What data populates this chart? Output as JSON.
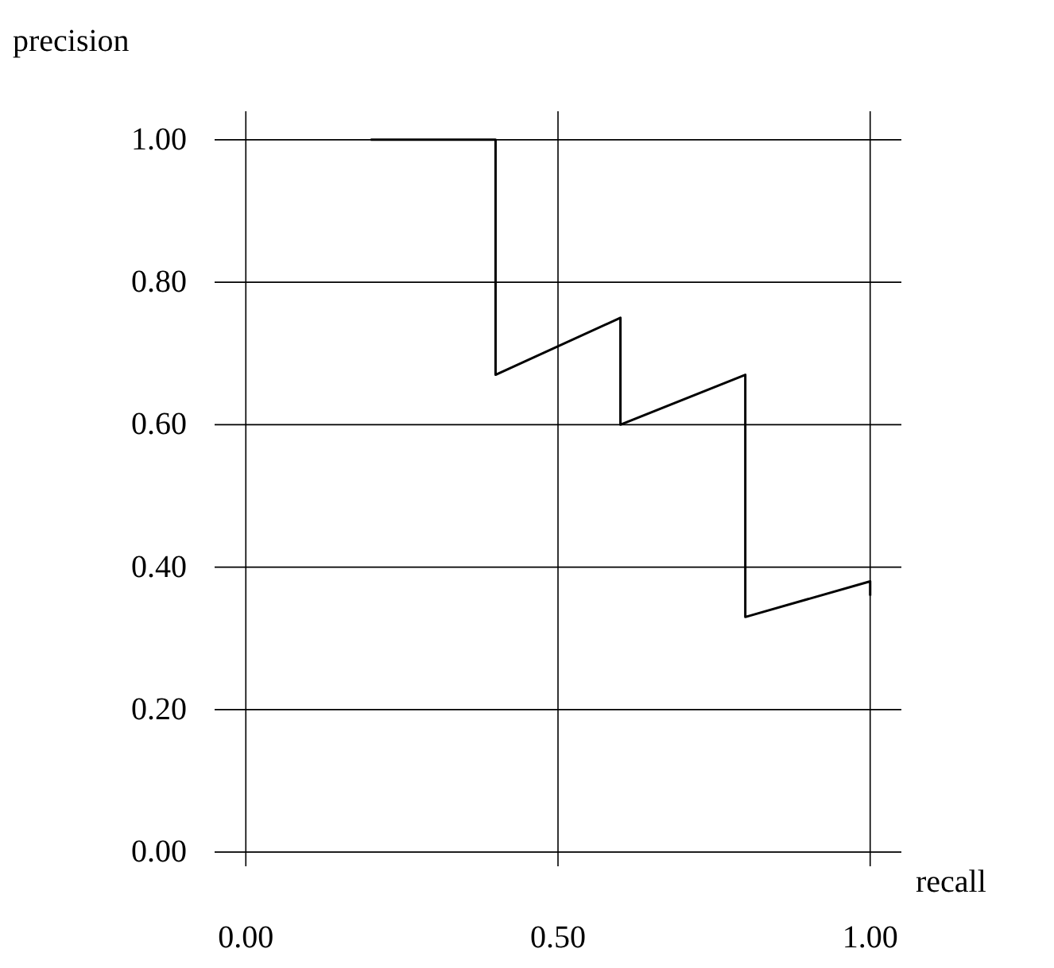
{
  "chart_data": {
    "type": "line",
    "xlabel": "recall",
    "ylabel": "precision",
    "x": [
      0.2,
      0.4,
      0.4,
      0.6,
      0.6,
      0.8,
      0.8,
      1.0,
      1.0
    ],
    "series": [
      {
        "color": "#000000",
        "values": [
          1.0,
          1.0,
          0.67,
          0.75,
          0.6,
          0.67,
          0.33,
          0.38,
          0.36
        ]
      }
    ],
    "xlim": [
      -0.05,
      1.05
    ],
    "ylim": [
      -0.02,
      1.04
    ],
    "xticks": [
      {
        "value": 0,
        "label": "0.00"
      },
      {
        "value": 0.5,
        "label": "0.50"
      },
      {
        "value": 1,
        "label": "1.00"
      }
    ],
    "yticks": [
      {
        "value": 0,
        "label": "0.00"
      },
      {
        "value": 0.2,
        "label": "0.20"
      },
      {
        "value": 0.4,
        "label": "0.40"
      },
      {
        "value": 0.6,
        "label": "0.60"
      },
      {
        "value": 0.8,
        "label": "0.80"
      },
      {
        "value": 1,
        "label": "1.00"
      }
    ],
    "grid": true,
    "line_style": "solid",
    "marker": "none"
  }
}
